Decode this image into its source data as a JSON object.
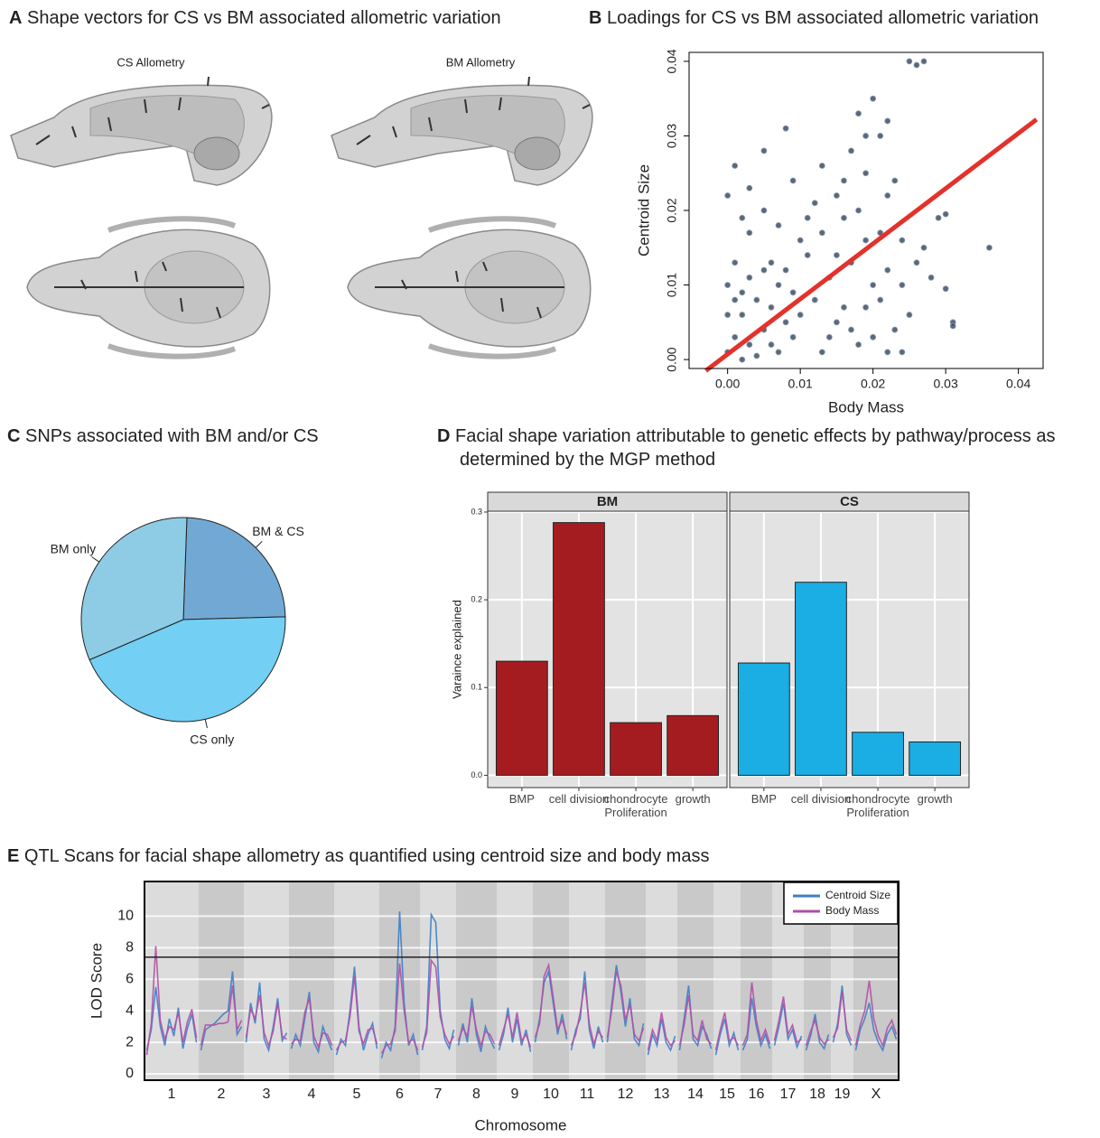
{
  "panel_a": {
    "panel": "A",
    "title": "Shape vectors for CS vs BM associated allometric variation",
    "views": [
      "CS Allometry",
      "BM Allometry"
    ]
  },
  "chart_data": [
    {
      "type": "scatter",
      "panel": "B",
      "title": "Loadings for CS vs BM associated allometric variation",
      "x_label": "Body Mass",
      "y_label": "Centroid Size",
      "x": [
        0,
        0.001,
        0.002,
        0.003,
        0.004,
        0.005,
        0.006,
        0.007,
        0.008,
        0.009,
        0,
        0.001,
        0.002,
        0.003,
        0.005,
        0.006,
        0.007,
        0.008,
        0.009,
        0.01,
        0.004,
        0,
        0.002,
        0.006,
        0.001,
        0.011,
        0.012,
        0.013,
        0.014,
        0.015,
        0.016,
        0.017,
        0.018,
        0.019,
        0.02,
        0.011,
        0.012,
        0.014,
        0.016,
        0.018,
        0.019,
        0.02,
        0.021,
        0.022,
        0.022,
        0.013,
        0.015,
        0.017,
        0.01,
        0.021,
        0,
        0.001,
        0.003,
        0.005,
        0.005,
        0.008,
        0.009,
        0.007,
        0.003,
        0.002,
        0.013,
        0.015,
        0.017,
        0.018,
        0.019,
        0.02,
        0.021,
        0.022,
        0.023,
        0.024,
        0.025,
        0.026,
        0.027,
        0.019,
        0.016,
        0.024,
        0.025,
        0.026,
        0.027,
        0.028,
        0.029,
        0.03,
        0.03,
        0.031,
        0.031,
        0.036,
        0.023,
        0.024,
        0.022
      ],
      "values": [
        0.001,
        0.003,
        0.006,
        0.002,
        0.008,
        0.004,
        0.007,
        0.001,
        0.005,
        0.009,
        0.01,
        0.013,
        0,
        0.011,
        0.012,
        0.002,
        0.01,
        0.012,
        0.003,
        0.006,
        0.0005,
        0.006,
        0.009,
        0.013,
        0.008,
        0.014,
        0.008,
        0.017,
        0.011,
        0.005,
        0.019,
        0.013,
        0.002,
        0.016,
        0.01,
        0.019,
        0.021,
        0.003,
        0.007,
        0.02,
        0.007,
        0.003,
        0.017,
        0.012,
        0.001,
        0.001,
        0.014,
        0.004,
        0.016,
        0.008,
        0.022,
        0.026,
        0.023,
        0.02,
        0.028,
        0.031,
        0.024,
        0.018,
        0.017,
        0.019,
        0.026,
        0.022,
        0.028,
        0.033,
        0.03,
        0.035,
        0.03,
        0.032,
        0.024,
        0.016,
        0.04,
        0.0395,
        0.04,
        0.025,
        0.024,
        0.01,
        0.006,
        0.013,
        0.015,
        0.011,
        0.019,
        0.0195,
        0.0095,
        0.005,
        0.0045,
        0.015,
        0.004,
        0.001,
        0.022
      ],
      "color": "#23364d",
      "xlim": [
        -0.0053,
        0.0434
      ],
      "ylim": [
        -0.0012,
        0.0412
      ],
      "xticks": [
        {
          "value": 0,
          "label": "0.00"
        },
        {
          "value": 0.01,
          "label": "0.01"
        },
        {
          "value": 0.02,
          "label": "0.02"
        },
        {
          "value": 0.03,
          "label": "0.03"
        },
        {
          "value": 0.04,
          "label": "0.04"
        }
      ],
      "yticks": [
        {
          "value": 0,
          "label": "0.00"
        },
        {
          "value": 0.01,
          "label": "0.01"
        },
        {
          "value": 0.02,
          "label": "0.02"
        },
        {
          "value": 0.03,
          "label": "0.03"
        },
        {
          "value": 0.04,
          "label": "0.04"
        }
      ],
      "fit_line": {
        "x": [
          -0.003,
          0.0425
        ],
        "y": [
          -0.0015,
          0.0322
        ],
        "color": "#e3322b"
      }
    },
    {
      "type": "pie",
      "panel": "C",
      "title": "SNPs associated with BM and/or CS",
      "categories": [
        "BM & CS",
        "CS only",
        "BM only"
      ],
      "values": [
        24,
        44,
        32
      ],
      "colors": [
        "#72a9d4",
        "#73cff3",
        "#8ecce6"
      ]
    },
    {
      "type": "bar",
      "panel": "D",
      "title": "Facial shape variation attributable to genetic effects by pathway/process as determined by the MGP method",
      "y_label": "Varaince explained",
      "categories": [
        "BMP",
        "cell division",
        "chondrocyte Proliferation",
        "growth"
      ],
      "facets": [
        {
          "name": "BM",
          "color": "#a51c20",
          "values": [
            0.13,
            0.288,
            0.06,
            0.068
          ]
        },
        {
          "name": "CS",
          "color": "#1aaee4",
          "values": [
            0.128,
            0.22,
            0.049,
            0.038
          ]
        }
      ],
      "ylim": [
        -0.014,
        0.301
      ],
      "yticks": [
        {
          "value": 0,
          "label": "0.0"
        },
        {
          "value": 0.1,
          "label": "0.1"
        },
        {
          "value": 0.2,
          "label": "0.2"
        },
        {
          "value": 0.3,
          "label": "0.3"
        }
      ],
      "grid": true
    },
    {
      "type": "line",
      "panel": "E",
      "title": "QTL Scans for facial shape allometry as quantified using centroid size and body mass",
      "x_label": "Chromosome",
      "y_label": "LOD Score",
      "categories": [
        "1",
        "2",
        "3",
        "4",
        "5",
        "6",
        "7",
        "8",
        "9",
        "10",
        "11",
        "12",
        "13",
        "14",
        "15",
        "16",
        "17",
        "18",
        "19",
        "X"
      ],
      "series": [
        {
          "name": "Centroid Size",
          "color": "#3e7ec6",
          "values": [
            [
              1.5,
              2.8,
              5.5,
              3.0,
              1.8,
              3.5,
              2.4,
              4.2,
              1.6,
              2.9,
              3.8,
              2.0
            ],
            [
              1.5,
              2.8,
              3.0,
              3.2,
              3.5,
              3.8,
              4.0,
              6.5,
              2.5,
              3.0
            ],
            [
              2.0,
              4.5,
              3.2,
              5.8,
              2.2,
              1.5,
              3.0,
              4.8,
              2.1,
              2.6
            ],
            [
              1.6,
              2.5,
              1.8,
              3.5,
              5.2,
              2.0,
              1.4,
              3.0,
              2.2,
              1.5
            ],
            [
              1.2,
              2.2,
              1.8,
              4.0,
              6.8,
              3.0,
              1.5,
              2.5,
              3.2,
              1.6
            ],
            [
              1.0,
              2.0,
              1.5,
              3.0,
              10.3,
              4.5,
              1.8,
              2.5,
              1.2
            ],
            [
              1.5,
              3.0,
              10.1,
              9.6,
              4.0,
              2.2,
              1.6,
              2.8
            ],
            [
              1.8,
              3.2,
              2.0,
              4.8,
              2.5,
              1.4,
              3.0,
              2.2,
              1.6
            ],
            [
              1.5,
              2.5,
              4.2,
              2.0,
              3.5,
              1.8,
              2.8,
              1.4
            ],
            [
              2.0,
              3.5,
              5.8,
              6.5,
              4.5,
              2.5,
              3.8,
              2.2
            ],
            [
              1.5,
              2.8,
              3.5,
              6.5,
              2.8,
              1.6,
              3.0,
              2.0
            ],
            [
              2.0,
              4.5,
              6.9,
              5.2,
              3.0,
              4.8,
              2.2,
              1.8,
              3.2
            ],
            [
              1.2,
              2.5,
              1.8,
              3.5,
              2.0,
              1.5,
              2.4
            ],
            [
              1.5,
              3.5,
              5.6,
              2.2,
              1.8,
              3.0,
              2.5,
              1.6
            ],
            [
              1.2,
              2.5,
              3.5,
              1.8,
              2.6,
              1.5
            ],
            [
              1.5,
              2.2,
              4.8,
              3.0,
              1.8,
              2.5,
              1.6
            ],
            [
              1.8,
              3.0,
              4.5,
              2.2,
              2.8,
              1.7,
              2.4
            ],
            [
              1.5,
              2.4,
              3.8,
              2.0,
              1.6,
              2.5
            ],
            [
              2.0,
              3.2,
              5.6,
              2.5,
              1.8
            ],
            [
              1.5,
              2.8,
              3.5,
              4.5,
              2.8,
              2.0,
              1.5,
              2.5,
              3.0,
              2.2
            ]
          ]
        },
        {
          "name": "Body Mass",
          "color": "#b24fa5",
          "values": [
            [
              1.2,
              3.2,
              8.1,
              3.4,
              2.2,
              3.0,
              2.8,
              3.9,
              2.0,
              3.3,
              4.1,
              2.3
            ],
            [
              1.8,
              3.1,
              3.1,
              3.1,
              3.2,
              3.2,
              3.3,
              5.6,
              2.8,
              3.4
            ],
            [
              2.3,
              4.1,
              3.5,
              5.0,
              2.6,
              1.8,
              2.7,
              4.5,
              2.4,
              2.2
            ],
            [
              1.9,
              2.2,
              2.1,
              3.9,
              4.8,
              2.4,
              1.7,
              2.6,
              2.5,
              1.8
            ],
            [
              1.5,
              2.0,
              2.1,
              3.6,
              6.2,
              2.7,
              1.9,
              2.8,
              2.9,
              1.9
            ],
            [
              1.3,
              1.8,
              1.9,
              2.7,
              7.0,
              4.0,
              2.0,
              2.2,
              1.5
            ],
            [
              1.7,
              2.6,
              7.2,
              6.8,
              3.6,
              2.5,
              1.9,
              2.4
            ],
            [
              2.1,
              2.9,
              2.4,
              4.3,
              2.8,
              1.8,
              2.7,
              2.5,
              1.9
            ],
            [
              1.8,
              2.8,
              3.8,
              2.3,
              3.9,
              2.1,
              2.5,
              1.7
            ],
            [
              2.3,
              3.2,
              6.2,
              6.9,
              4.9,
              2.8,
              3.4,
              2.5
            ],
            [
              1.8,
              2.5,
              3.9,
              5.8,
              3.2,
              1.9,
              2.7,
              2.3
            ],
            [
              2.3,
              4.1,
              6.5,
              5.6,
              3.4,
              4.4,
              2.5,
              2.1,
              2.9
            ],
            [
              1.5,
              2.8,
              2.1,
              3.9,
              2.3,
              1.8,
              2.1
            ],
            [
              1.8,
              3.1,
              5.0,
              2.5,
              2.1,
              3.4,
              2.2,
              1.9
            ],
            [
              1.5,
              2.8,
              3.9,
              2.1,
              2.3,
              1.8
            ],
            [
              1.8,
              2.5,
              5.8,
              3.4,
              2.1,
              2.8,
              1.9
            ],
            [
              2.1,
              3.4,
              4.9,
              2.5,
              3.1,
              2.0,
              2.2
            ],
            [
              1.8,
              2.7,
              3.4,
              2.3,
              1.9,
              2.2
            ],
            [
              2.3,
              2.9,
              5.2,
              2.8,
              2.1
            ],
            [
              1.8,
              3.1,
              4.0,
              5.9,
              3.5,
              2.4,
              1.8,
              2.9,
              3.4,
              2.5
            ]
          ]
        }
      ],
      "ylim": [
        -0.4,
        12.2
      ],
      "yticks": [
        0,
        2,
        4,
        6,
        8,
        10
      ],
      "threshold": 7.4,
      "grid": true,
      "legend": "top-right"
    }
  ]
}
